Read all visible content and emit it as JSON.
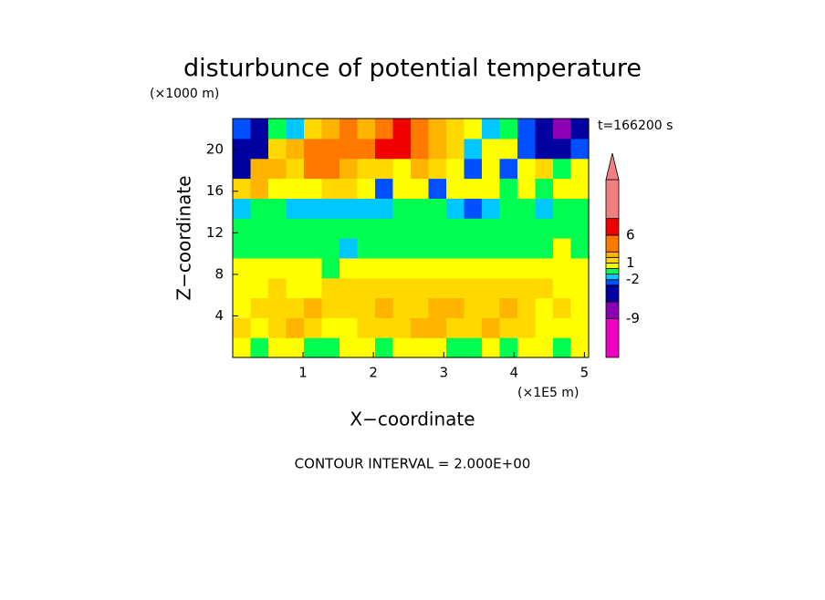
{
  "chart_data": {
    "type": "contourf",
    "title": "disturbunce of potential temperature",
    "y_unit": "(×1000 m)",
    "x_unit": "(×1E5 m)",
    "time_label": "t=166200 s",
    "xlabel": "X−coordinate",
    "ylabel": "Z−coordinate",
    "footer": "CONTOUR INTERVAL = 2.000E+00",
    "xlim": [
      0,
      5.06
    ],
    "ylim": [
      0,
      23
    ],
    "xticks": [
      1,
      2,
      3,
      4,
      5
    ],
    "yticks": [
      4,
      8,
      12,
      16,
      20
    ],
    "z": [
      [
        0.5,
        -0.5,
        0.5,
        0.5,
        -0.5,
        -0.5,
        0.5,
        0.5,
        -0.5,
        0.5,
        0.5,
        0.5,
        -0.5,
        -0.5,
        0.5,
        -0.5,
        0.5,
        0.5,
        -0.5,
        0.5
      ],
      [
        1.5,
        0.5,
        1.5,
        2.5,
        1.5,
        0.5,
        0.5,
        1.5,
        1.5,
        1.5,
        2.5,
        2.5,
        1.5,
        1.5,
        2.5,
        1.5,
        1.5,
        0.5,
        0.5,
        0.5
      ],
      [
        0.5,
        1.5,
        1.5,
        1.5,
        2.5,
        1.5,
        1.5,
        1.5,
        2.5,
        1.5,
        1.5,
        2.5,
        2.5,
        1.5,
        1.5,
        2.5,
        1.5,
        0.5,
        1.5,
        0.5
      ],
      [
        0.5,
        0.5,
        1.5,
        0.5,
        0.5,
        1.5,
        1.5,
        1.5,
        1.5,
        1.5,
        1.5,
        1.5,
        1.5,
        1.5,
        1.5,
        1.5,
        1.5,
        1.5,
        0.5,
        0.5
      ],
      [
        0.5,
        0.5,
        0.5,
        0.5,
        0.5,
        -0.5,
        0.5,
        0.5,
        0.5,
        0.5,
        0.5,
        0.5,
        0.5,
        0.5,
        0.5,
        0.5,
        0.5,
        0.5,
        0.5,
        0.5
      ],
      [
        -0.5,
        -0.5,
        -0.5,
        -0.5,
        -0.5,
        -0.5,
        -1.5,
        -0.5,
        -0.5,
        -0.5,
        -0.5,
        -0.5,
        -0.5,
        -0.5,
        -0.5,
        -0.5,
        -0.5,
        -0.5,
        0.5,
        -0.5
      ],
      [
        -0.5,
        -0.5,
        -0.5,
        -0.5,
        -0.5,
        -0.5,
        -0.5,
        -0.5,
        -0.5,
        -0.5,
        -0.5,
        -0.5,
        -0.5,
        -0.5,
        -0.5,
        -0.5,
        -0.5,
        -0.5,
        -0.5,
        -0.5
      ],
      [
        -1.5,
        -0.5,
        -0.5,
        -1.5,
        -1.5,
        -1.5,
        -1.5,
        -1.5,
        -1.5,
        -0.5,
        -0.5,
        -0.5,
        -1.5,
        -2.5,
        -1.5,
        -0.5,
        -0.5,
        -1.5,
        -0.5,
        -0.5
      ],
      [
        1.5,
        2.5,
        0.5,
        0.5,
        0.5,
        1.5,
        1.5,
        0.5,
        -2.5,
        0.5,
        0.5,
        -2.5,
        0.5,
        0.5,
        0.5,
        -0.5,
        0.5,
        -0.5,
        0.5,
        0.5
      ],
      [
        -4,
        2.5,
        2.5,
        1.5,
        4,
        4,
        2.5,
        1.5,
        1.5,
        0.5,
        2.5,
        1.5,
        0.5,
        -2.5,
        0.5,
        -2.5,
        0.5,
        1.5,
        -0.5,
        0.5
      ],
      [
        -4,
        -4,
        1.5,
        2.5,
        4,
        4,
        4,
        4,
        7,
        7,
        4,
        2.5,
        1.5,
        -1.5,
        0.5,
        0.5,
        -2.5,
        -4,
        -4,
        -2.5
      ],
      [
        -2.5,
        -4,
        -0.5,
        -1.5,
        1.5,
        2.5,
        4,
        2.5,
        4,
        7,
        4,
        2.5,
        1.5,
        0.5,
        -1.5,
        -0.5,
        -2.5,
        -4,
        -7,
        -4
      ]
    ],
    "colorbar": {
      "levels": [
        -16,
        -9,
        -6,
        -3,
        -2,
        -1,
        0,
        1,
        2,
        3,
        6,
        9,
        16
      ],
      "colors": [
        "#f000c0",
        "#8c00b4",
        "#0000a0",
        "#0050ff",
        "#00c8ff",
        "#00ff50",
        "#ffff00",
        "#ffd800",
        "#ffb400",
        "#ff7800",
        "#f00000",
        "#f08080"
      ],
      "ticks": [
        -9,
        -2,
        1,
        6
      ],
      "extend": "max"
    }
  }
}
